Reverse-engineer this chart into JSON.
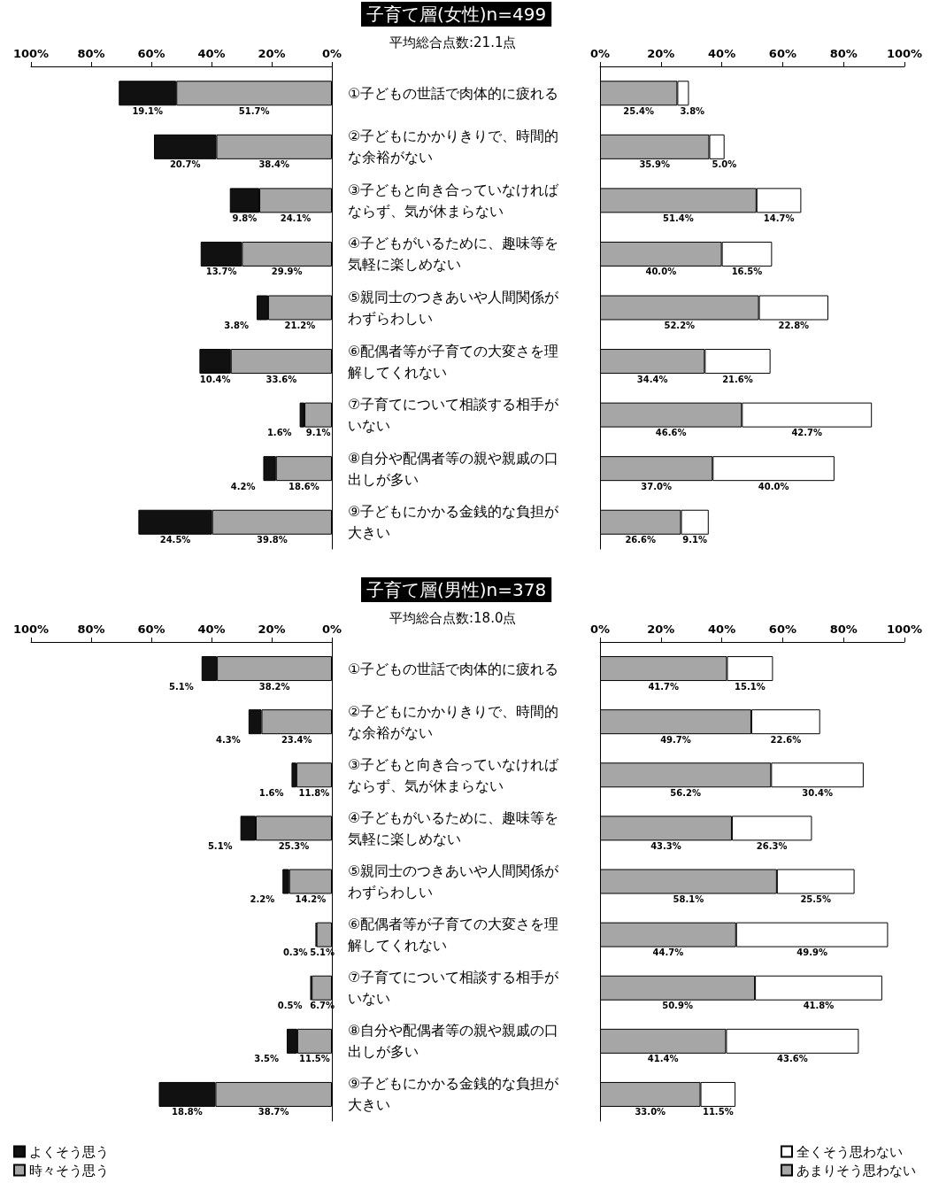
{
  "chart_data": [
    {
      "type": "bar",
      "orientation": "horizontal",
      "stacked": true,
      "title": "子育て層(女性)n=499",
      "subtitle": "平均総合点数:21.1点",
      "categories": [
        "①子どもの世話で肉体的に疲れる",
        "②子どもにかかりきりで、時間的な余裕がない",
        "③子どもと向き合っていなければならず、気が休まらない",
        "④子どもがいるために、趣味等を気軽に楽しめない",
        "⑤親同士のつきあいや人間関係がわずらわしい",
        "⑥配偶者等が子育ての大変さを理解してくれない",
        "⑦子育てについて相談する相手がいない",
        "⑧自分や配偶者等の親や親戚の口出しが多い",
        "⑨子どもにかかる金銭的な負担が大きい"
      ],
      "xlim": [
        100,
        0
      ],
      "xticks": [
        {
          "value": 100,
          "label": "100%"
        },
        {
          "value": 80,
          "label": "80%"
        },
        {
          "value": 60,
          "label": "60%"
        },
        {
          "value": 40,
          "label": "40%"
        },
        {
          "value": 20,
          "label": "20%"
        },
        {
          "value": 0,
          "label": "0%"
        }
      ],
      "grid": false,
      "series": [
        {
          "color": "#a6a6a6",
          "values": [
            51.7,
            38.4,
            24.1,
            29.9,
            21.2,
            33.6,
            9.1,
            18.6,
            39.8
          ],
          "value_labels": [
            "51.7%",
            "38.4%",
            "24.1%",
            "29.9%",
            "21.2%",
            "33.6%",
            "9.1%",
            "18.6%",
            "39.8%"
          ]
        },
        {
          "color": "#111111",
          "values": [
            19.1,
            20.7,
            9.8,
            13.7,
            3.8,
            10.4,
            1.6,
            4.2,
            24.5
          ],
          "value_labels": [
            "19.1%",
            "20.7%",
            "9.8%",
            "13.7%",
            "3.8%",
            "10.4%",
            "1.6%",
            "4.2%",
            "24.5%"
          ]
        }
      ]
    },
    {
      "type": "bar",
      "orientation": "horizontal",
      "stacked": true,
      "tick_labels": "x",
      "categories": [
        "①子どもの世話で肉体的に疲れる",
        "②子どもにかかりきりで、時間的な余裕がない",
        "③子どもと向き合っていなければならず、気が休まらない",
        "④子どもがいるために、趣味等を気軽に楽しめない",
        "⑤親同士のつきあいや人間関係がわずらわしい",
        "⑥配偶者等が子育ての大変さを理解してくれない",
        "⑦子育てについて相談する相手がいない",
        "⑧自分や配偶者等の親や親戚の口出しが多い",
        "⑨子どもにかかる金銭的な負担が大きい"
      ],
      "xlim": [
        0,
        100
      ],
      "xticks": [
        {
          "value": 0,
          "label": "0%"
        },
        {
          "value": 20,
          "label": "20%"
        },
        {
          "value": 40,
          "label": "40%"
        },
        {
          "value": 60,
          "label": "60%"
        },
        {
          "value": 80,
          "label": "80%"
        },
        {
          "value": 100,
          "label": "100%"
        }
      ],
      "grid": false,
      "series": [
        {
          "color": "#a6a6a6",
          "values": [
            25.4,
            35.9,
            51.4,
            40.0,
            52.2,
            34.4,
            46.6,
            37.0,
            26.6
          ],
          "value_labels": [
            "25.4%",
            "35.9%",
            "51.4%",
            "40.0%",
            "52.2%",
            "34.4%",
            "46.6%",
            "37.0%",
            "26.6%"
          ]
        },
        {
          "color": "#ffffff",
          "values": [
            3.8,
            5.0,
            14.7,
            16.5,
            22.8,
            21.6,
            42.7,
            40.0,
            9.1
          ],
          "value_labels": [
            "3.8%",
            "5.0%",
            "14.7%",
            "16.5%",
            "22.8%",
            "21.6%",
            "42.7%",
            "40.0%",
            "9.1%"
          ]
        }
      ]
    },
    {
      "type": "bar",
      "orientation": "horizontal",
      "stacked": true,
      "title": "子育て層(男性)n=378",
      "subtitle": "平均総合点数:18.0点",
      "legend": "bottom left",
      "categories": [
        "①子どもの世話で肉体的に疲れる",
        "②子どもにかかりきりで、時間的な余裕がない",
        "③子どもと向き合っていなければならず、気が休まらない",
        "④子どもがいるために、趣味等を気軽に楽しめない",
        "⑤親同士のつきあいや人間関係がわずらわしい",
        "⑥配偶者等が子育ての大変さを理解してくれない",
        "⑦子育てについて相談する相手がいない",
        "⑧自分や配偶者等の親や親戚の口出しが多い",
        "⑨子どもにかかる金銭的な負担が大きい"
      ],
      "xlim": [
        100,
        0
      ],
      "xticks": [
        {
          "value": 100,
          "label": "100%"
        },
        {
          "value": 80,
          "label": "80%"
        },
        {
          "value": 60,
          "label": "60%"
        },
        {
          "value": 40,
          "label": "40%"
        },
        {
          "value": 20,
          "label": "20%"
        },
        {
          "value": 0,
          "label": "0%"
        }
      ],
      "grid": false,
      "series": [
        {
          "name": "時々そう思う",
          "color": "#a6a6a6",
          "values": [
            38.2,
            23.4,
            11.8,
            25.3,
            14.2,
            5.1,
            6.7,
            11.5,
            38.7
          ],
          "value_labels": [
            "38.2%",
            "23.4%",
            "11.8%",
            "25.3%",
            "14.2%",
            "5.1%",
            "6.7%",
            "11.5%",
            "38.7%"
          ]
        },
        {
          "name": "よくそう思う",
          "color": "#111111",
          "values": [
            5.1,
            4.3,
            1.6,
            5.1,
            2.2,
            0.3,
            0.5,
            3.5,
            18.8
          ],
          "value_labels": [
            "5.1%",
            "4.3%",
            "1.6%",
            "5.1%",
            "2.2%",
            "0.3%",
            "0.5%",
            "3.5%",
            "18.8%"
          ]
        }
      ]
    },
    {
      "type": "bar",
      "orientation": "horizontal",
      "stacked": true,
      "tick_labels": "x",
      "legend": "bottom right",
      "categories": [
        "①子どもの世話で肉体的に疲れる",
        "②子どもにかかりきりで、時間的な余裕がない",
        "③子どもと向き合っていなければならず、気が休まらない",
        "④子どもがいるために、趣味等を気軽に楽しめない",
        "⑤親同士のつきあいや人間関係がわずらわしい",
        "⑥配偶者等が子育ての大変さを理解してくれない",
        "⑦子育てについて相談する相手がいない",
        "⑧自分や配偶者等の親や親戚の口出しが多い",
        "⑨子どもにかかる金銭的な負担が大きい"
      ],
      "xlim": [
        0,
        100
      ],
      "xticks": [
        {
          "value": 0,
          "label": "0%"
        },
        {
          "value": 20,
          "label": "20%"
        },
        {
          "value": 40,
          "label": "40%"
        },
        {
          "value": 60,
          "label": "60%"
        },
        {
          "value": 80,
          "label": "80%"
        },
        {
          "value": 100,
          "label": "100%"
        }
      ],
      "grid": false,
      "series": [
        {
          "name": "あまりそう思わない",
          "color": "#a6a6a6",
          "values": [
            41.7,
            49.7,
            56.2,
            43.3,
            58.1,
            44.7,
            50.9,
            41.4,
            33.0
          ],
          "value_labels": [
            "41.7%",
            "49.7%",
            "56.2%",
            "43.3%",
            "58.1%",
            "44.7%",
            "50.9%",
            "41.4%",
            "33.0%"
          ]
        },
        {
          "name": "全くそう思わない",
          "color": "#ffffff",
          "values": [
            15.1,
            22.6,
            30.4,
            26.3,
            25.5,
            49.9,
            41.8,
            43.6,
            11.5
          ],
          "value_labels": [
            "15.1%",
            "22.6%",
            "30.4%",
            "26.3%",
            "25.5%",
            "49.9%",
            "41.8%",
            "43.6%",
            "11.5%"
          ]
        }
      ]
    }
  ]
}
